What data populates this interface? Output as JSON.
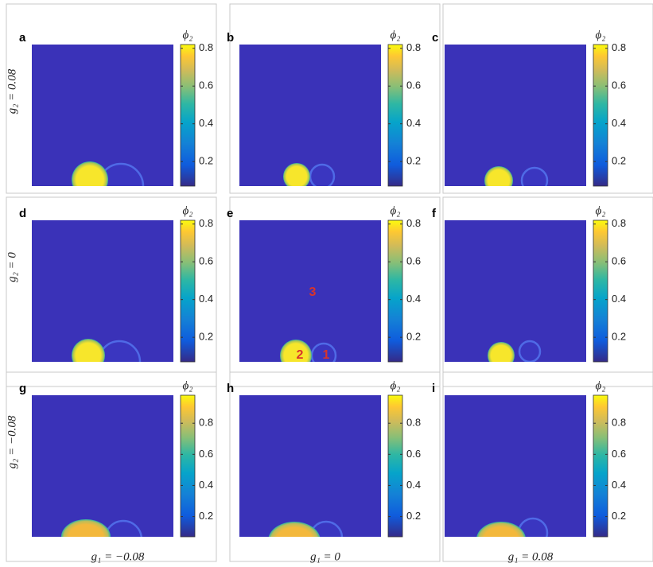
{
  "row_labels": [
    "g₂ = 0.08",
    "g₂ = 0",
    "g₂ = −0.08"
  ],
  "column_labels": [
    "g₁ = −0.08",
    "g₁ = 0",
    "g₁ = 0.08"
  ],
  "panels": [
    {
      "letter": "a",
      "colorbar_label": "ϕ₂",
      "clim": [
        0.07,
        0.82
      ],
      "ticks": [
        0.2,
        0.4,
        0.6,
        0.8
      ]
    },
    {
      "letter": "b",
      "colorbar_label": "ϕ₂",
      "clim": [
        0.07,
        0.82
      ],
      "ticks": [
        0.2,
        0.4,
        0.6,
        0.8
      ]
    },
    {
      "letter": "c",
      "colorbar_label": "ϕ₂",
      "clim": [
        0.07,
        0.82
      ],
      "ticks": [
        0.2,
        0.4,
        0.6,
        0.8
      ]
    },
    {
      "letter": "d",
      "colorbar_label": "ϕ₂",
      "clim": [
        0.07,
        0.82
      ],
      "ticks": [
        0.2,
        0.4,
        0.6,
        0.8
      ]
    },
    {
      "letter": "e",
      "colorbar_label": "ϕ₂",
      "clim": [
        0.07,
        0.82
      ],
      "ticks": [
        0.2,
        0.4,
        0.6,
        0.8
      ],
      "annotations": [
        "3",
        "2",
        "1"
      ]
    },
    {
      "letter": "f",
      "colorbar_label": "ϕ₂",
      "clim": [
        0.07,
        0.82
      ],
      "ticks": [
        0.2,
        0.4,
        0.6,
        0.8
      ]
    },
    {
      "letter": "g",
      "colorbar_label": "ϕ₂",
      "clim": [
        0.07,
        0.98
      ],
      "ticks": [
        0.2,
        0.4,
        0.6,
        0.8
      ]
    },
    {
      "letter": "h",
      "colorbar_label": "ϕ₂",
      "clim": [
        0.07,
        0.98
      ],
      "ticks": [
        0.2,
        0.4,
        0.6,
        0.8
      ]
    },
    {
      "letter": "i",
      "colorbar_label": "ϕ₂",
      "clim": [
        0.07,
        0.98
      ],
      "ticks": [
        0.2,
        0.4,
        0.6,
        0.8
      ]
    }
  ]
}
